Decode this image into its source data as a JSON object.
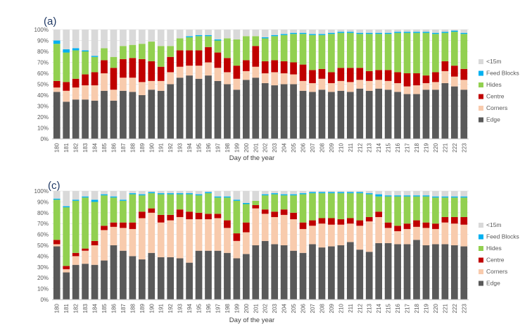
{
  "series_order": [
    "Edge",
    "Corners",
    "Centre",
    "Hides",
    "Feed Blocks",
    "<15m"
  ],
  "colors": {
    "Edge": "#595959",
    "Corners": "#f8cbad",
    "Centre": "#c00000",
    "Hides": "#92d050",
    "Feed Blocks": "#00b0f0",
    "<15m": "#d9d9d9"
  },
  "legend_order": [
    "<15m",
    "Feed Blocks",
    "Hides",
    "Centre",
    "Corners",
    "Edge"
  ],
  "chart_data": [
    {
      "type": "bar",
      "stacked": true,
      "panel_label": "(a)",
      "title": "",
      "xlabel": "Day of the year",
      "ylabel": "",
      "ylim": [
        0,
        100
      ],
      "yticks": [
        "0%",
        "10%",
        "20%",
        "30%",
        "40%",
        "50%",
        "60%",
        "70%",
        "80%",
        "90%",
        "100%"
      ],
      "categories": [
        "180",
        "181",
        "182",
        "183",
        "184",
        "185",
        "186",
        "187",
        "188",
        "189",
        "190",
        "191",
        "192",
        "193",
        "194",
        "195",
        "196",
        "197",
        "198",
        "199",
        "200",
        "201",
        "202",
        "203",
        "204",
        "205",
        "206",
        "207",
        "208",
        "209",
        "210",
        "211",
        "212",
        "213",
        "214",
        "215",
        "216",
        "217",
        "218",
        "219",
        "220",
        "221",
        "222",
        "223"
      ],
      "series": [
        {
          "name": "Edge",
          "values": [
            43,
            34,
            36,
            36,
            35,
            44,
            35,
            44,
            43,
            40,
            45,
            44,
            50,
            56,
            58,
            55,
            58,
            53,
            50,
            45,
            54,
            56,
            51,
            49,
            50,
            50,
            44,
            43,
            45,
            43,
            44,
            43,
            46,
            44,
            46,
            45,
            43,
            41,
            41,
            45,
            45,
            51,
            48,
            45
          ]
        },
        {
          "name": "Corners",
          "values": [
            4,
            10,
            11,
            13,
            14,
            16,
            10,
            12,
            13,
            12,
            8,
            9,
            11,
            10,
            9,
            12,
            12,
            12,
            11,
            10,
            8,
            10,
            9,
            12,
            10,
            9,
            9,
            8,
            10,
            8,
            9,
            9,
            8,
            9,
            8,
            8,
            8,
            7,
            8,
            6,
            7,
            11,
            9,
            9
          ]
        },
        {
          "name": "Centre",
          "values": [
            6,
            8,
            8,
            10,
            12,
            12,
            20,
            17,
            18,
            21,
            18,
            13,
            14,
            15,
            14,
            14,
            14,
            14,
            13,
            12,
            10,
            19,
            11,
            11,
            11,
            11,
            15,
            12,
            9,
            10,
            12,
            13,
            11,
            9,
            9,
            10,
            10,
            12,
            11,
            7,
            9,
            9,
            10,
            10
          ]
        },
        {
          "name": "Hides",
          "values": [
            34,
            27,
            26,
            21,
            14,
            11,
            10,
            12,
            12,
            14,
            18,
            19,
            10,
            11,
            12,
            13,
            10,
            11,
            18,
            24,
            22,
            9,
            21,
            22,
            24,
            26,
            28,
            32,
            31,
            35,
            32,
            32,
            31,
            34,
            33,
            33,
            36,
            37,
            37,
            39,
            35,
            26,
            31,
            32
          ]
        },
        {
          "name": "Feed Blocks",
          "values": [
            3,
            3,
            2,
            1,
            1,
            0,
            0,
            0,
            0,
            0,
            0,
            0,
            0,
            0,
            1,
            1,
            1,
            1,
            0,
            0,
            0,
            0,
            1,
            1,
            1,
            1,
            1,
            1,
            1,
            1,
            1,
            1,
            1,
            1,
            1,
            1,
            1,
            1,
            1,
            1,
            1,
            1,
            1,
            1
          ]
        },
        {
          "name": "<15m",
          "values": [
            10,
            18,
            17,
            19,
            24,
            17,
            25,
            15,
            14,
            13,
            11,
            15,
            15,
            8,
            6,
            5,
            5,
            9,
            8,
            9,
            6,
            6,
            7,
            5,
            4,
            3,
            3,
            4,
            4,
            3,
            2,
            2,
            3,
            3,
            3,
            3,
            2,
            2,
            2,
            2,
            3,
            2,
            1,
            3
          ]
        }
      ]
    },
    {
      "type": "bar",
      "stacked": true,
      "panel_label": "(c)",
      "title": "",
      "xlabel": "Day of the year",
      "ylabel": "",
      "ylim": [
        0,
        100
      ],
      "yticks": [
        "0%",
        "10%",
        "20%",
        "30%",
        "40%",
        "50%",
        "60%",
        "70%",
        "80%",
        "90%",
        "100%"
      ],
      "categories": [
        "180",
        "181",
        "182",
        "183",
        "184",
        "185",
        "186",
        "187",
        "188",
        "189",
        "190",
        "191",
        "192",
        "193",
        "194",
        "195",
        "196",
        "197",
        "198",
        "199",
        "200",
        "201",
        "202",
        "203",
        "204",
        "205",
        "206",
        "207",
        "208",
        "209",
        "210",
        "211",
        "212",
        "213",
        "214",
        "215",
        "216",
        "217",
        "218",
        "219",
        "220",
        "221",
        "222",
        "223"
      ],
      "series": [
        {
          "name": "Edge",
          "values": [
            49,
            25,
            32,
            33,
            32,
            36,
            50,
            45,
            40,
            37,
            43,
            39,
            39,
            38,
            34,
            45,
            45,
            45,
            43,
            38,
            42,
            50,
            54,
            51,
            50,
            45,
            43,
            51,
            48,
            49,
            50,
            53,
            46,
            44,
            52,
            52,
            51,
            51,
            55,
            50,
            51,
            51,
            50,
            49
          ]
        },
        {
          "name": "Corners",
          "values": [
            2,
            3,
            8,
            12,
            18,
            28,
            17,
            21,
            25,
            38,
            37,
            32,
            34,
            38,
            40,
            29,
            29,
            30,
            23,
            16,
            20,
            34,
            25,
            25,
            28,
            29,
            22,
            17,
            22,
            20,
            19,
            17,
            22,
            28,
            24,
            14,
            12,
            14,
            12,
            16,
            14,
            20,
            20,
            20
          ]
        },
        {
          "name": "Centre",
          "values": [
            4,
            3,
            3,
            2,
            4,
            4,
            4,
            5,
            6,
            6,
            4,
            7,
            5,
            7,
            7,
            6,
            5,
            4,
            7,
            7,
            9,
            3,
            4,
            5,
            5,
            6,
            6,
            5,
            5,
            6,
            5,
            5,
            5,
            4,
            5,
            5,
            5,
            5,
            6,
            5,
            5,
            5,
            6,
            7
          ]
        },
        {
          "name": "Hides",
          "values": [
            37,
            54,
            48,
            47,
            36,
            28,
            23,
            20,
            26,
            15,
            14,
            19,
            19,
            14,
            16,
            16,
            19,
            15,
            21,
            30,
            17,
            4,
            13,
            16,
            13,
            16,
            26,
            25,
            23,
            23,
            24,
            23,
            25,
            21,
            14,
            24,
            27,
            25,
            22,
            24,
            24,
            18,
            18,
            18
          ]
        },
        {
          "name": "Feed Blocks",
          "values": [
            1,
            1,
            1,
            1,
            2,
            1,
            1,
            1,
            1,
            1,
            1,
            1,
            1,
            1,
            1,
            1,
            1,
            1,
            1,
            1,
            1,
            0,
            1,
            1,
            1,
            1,
            1,
            1,
            1,
            1,
            1,
            1,
            1,
            1,
            2,
            1,
            1,
            1,
            1,
            1,
            1,
            1,
            1,
            1
          ]
        },
        {
          "name": "<15m",
          "values": [
            7,
            14,
            8,
            5,
            8,
            3,
            5,
            8,
            2,
            3,
            1,
            2,
            2,
            2,
            2,
            3,
            1,
            5,
            5,
            8,
            11,
            9,
            3,
            2,
            3,
            3,
            2,
            1,
            1,
            1,
            1,
            1,
            1,
            2,
            3,
            4,
            4,
            4,
            4,
            4,
            5,
            5,
            5,
            5
          ]
        }
      ]
    }
  ]
}
